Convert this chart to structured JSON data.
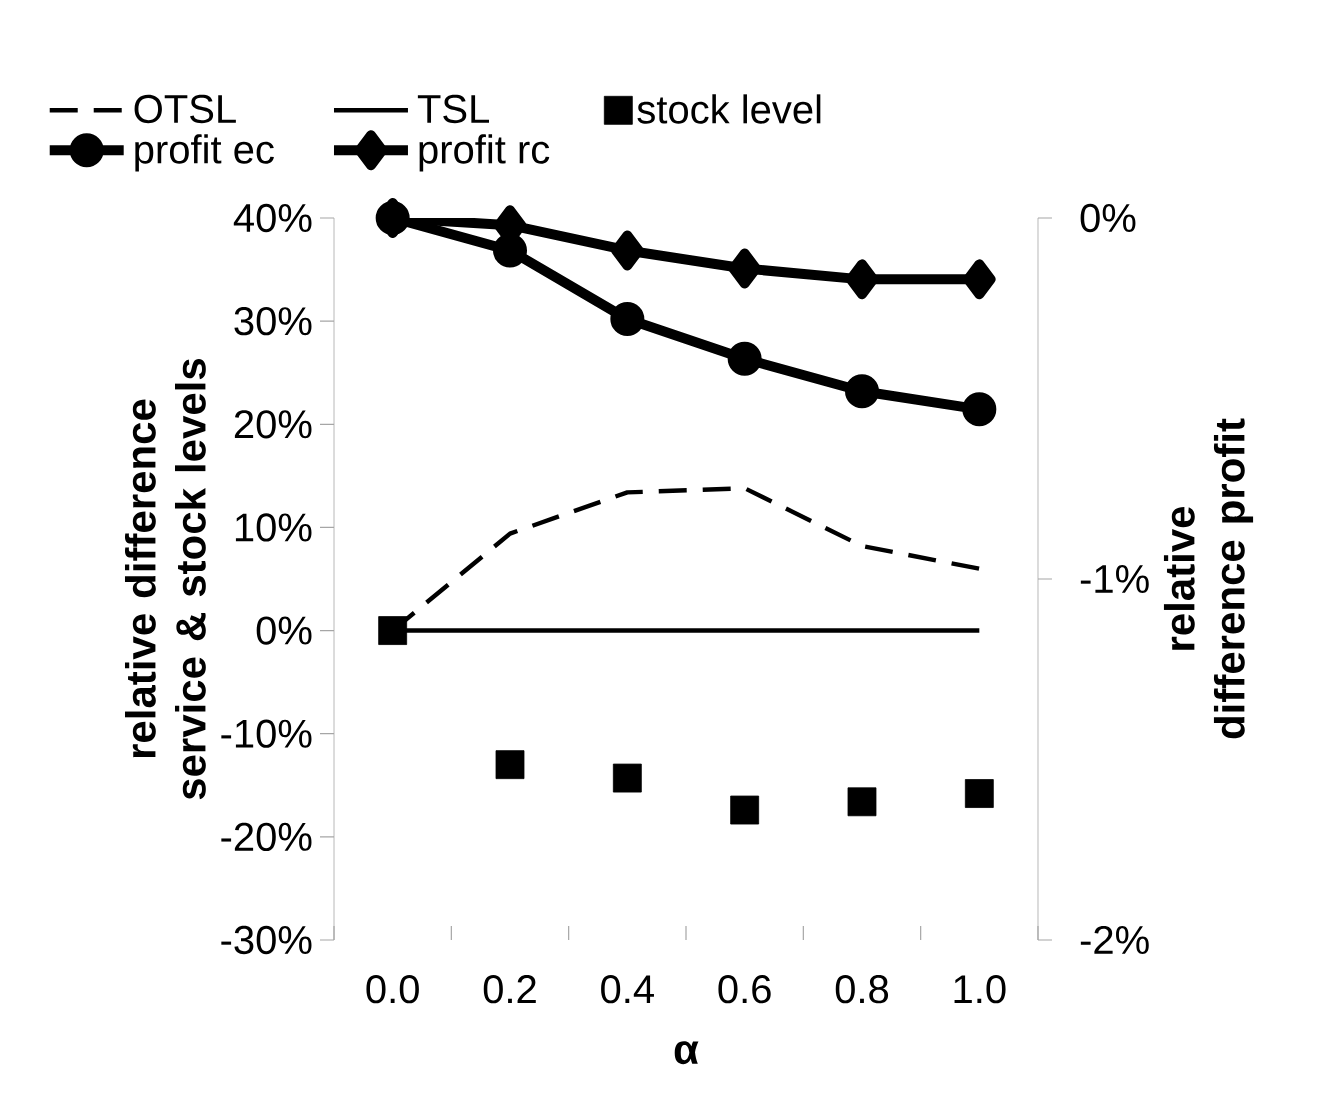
{
  "chart_data": {
    "type": "line",
    "xlabel": "α",
    "ylabel": "relative difference service & stock levels",
    "y2label": "relative difference profit",
    "categories": [
      "0.0",
      "0.2",
      "0.4",
      "0.6",
      "0.8",
      "1.0"
    ],
    "ylim": [
      -30,
      40
    ],
    "yticks": [
      {
        "value": -30,
        "label": "-30%"
      },
      {
        "value": -20,
        "label": "-20%"
      },
      {
        "value": -10,
        "label": "-10%"
      },
      {
        "value": 0,
        "label": "0%"
      },
      {
        "value": 10,
        "label": "10%"
      },
      {
        "value": 20,
        "label": "20%"
      },
      {
        "value": 30,
        "label": "30%"
      },
      {
        "value": 40,
        "label": "40%"
      }
    ],
    "y2lim": [
      -2,
      0
    ],
    "y2ticks": [
      {
        "value": -2,
        "label": "-2%"
      },
      {
        "value": -1,
        "label": "-1%"
      },
      {
        "value": 0,
        "label": "0%"
      }
    ],
    "legend": "top",
    "grid": false,
    "series": [
      {
        "name": "OTSL",
        "color": "#000000",
        "line_style": "dashed",
        "marker": "none",
        "values": [
          0,
          9.4,
          13.4,
          13.8,
          8.2,
          6.0
        ]
      },
      {
        "name": "TSL",
        "color": "#000000",
        "line_style": "solid",
        "marker": "none",
        "values": [
          0,
          0,
          0,
          0,
          0,
          0
        ]
      },
      {
        "name": "stock level",
        "type": "scatter",
        "color": "#000000",
        "marker": "square",
        "values": [
          0,
          -13.0,
          -14.3,
          -17.4,
          -16.6,
          -15.8
        ]
      },
      {
        "name": "profit ec",
        "color": "#000000",
        "line_style": "solid",
        "marker": "circle",
        "axis": "y2",
        "values": [
          0,
          -0.09,
          -0.28,
          -0.39,
          -0.48,
          -0.53
        ]
      },
      {
        "name": "profit rc",
        "color": "#000000",
        "line_style": "solid",
        "marker": "diamond",
        "axis": "y2",
        "values": [
          0,
          -0.02,
          -0.09,
          -0.14,
          -0.17,
          -0.17
        ]
      }
    ]
  }
}
